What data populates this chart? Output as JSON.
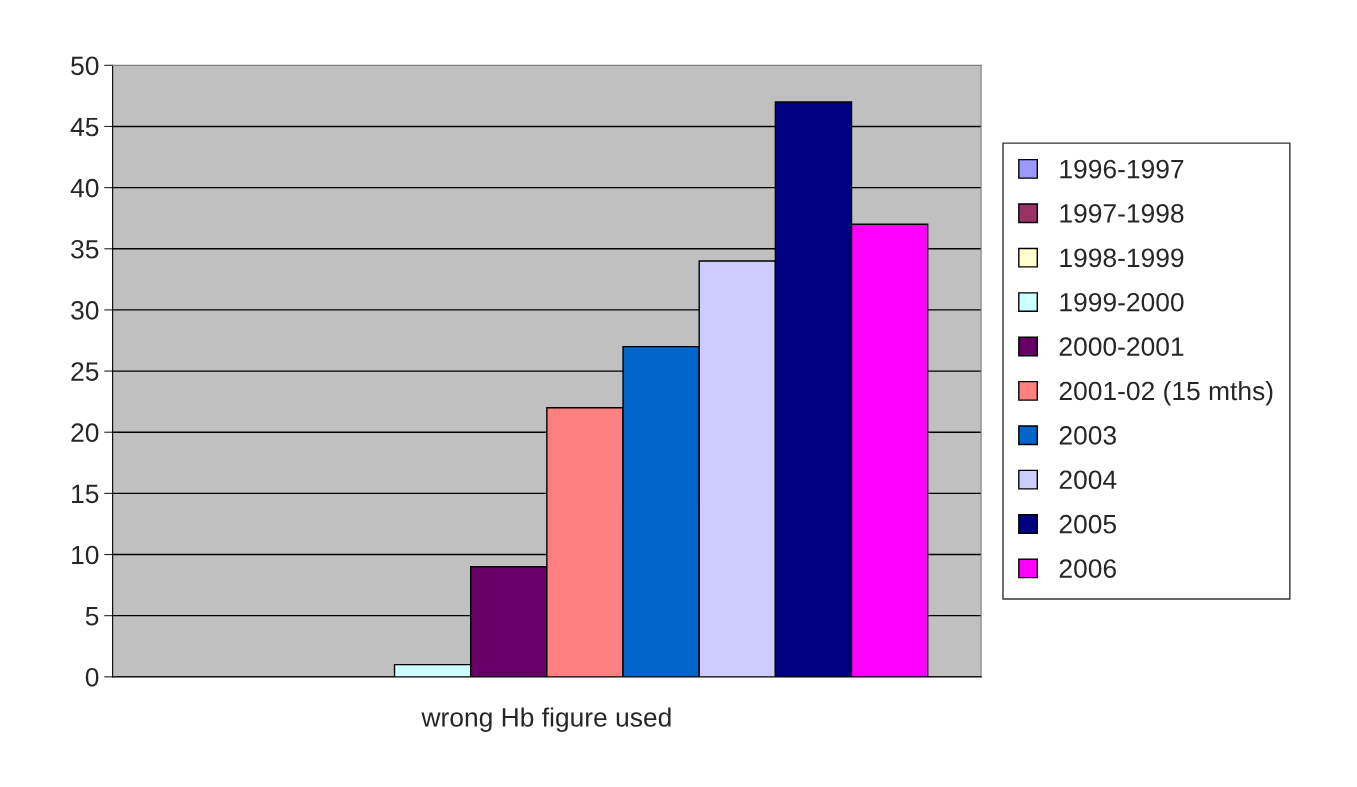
{
  "chart_data": {
    "type": "bar",
    "categories": [
      "wrong Hb figure used"
    ],
    "series": [
      {
        "name": "1996-1997",
        "color": "#9999ff",
        "values": [
          0
        ]
      },
      {
        "name": "1997-1998",
        "color": "#993366",
        "values": [
          0
        ]
      },
      {
        "name": "1998-1999",
        "color": "#ffffcc",
        "values": [
          0
        ]
      },
      {
        "name": "1999-2000",
        "color": "#ccffff",
        "values": [
          1
        ]
      },
      {
        "name": "2000-2001",
        "color": "#660066",
        "values": [
          9
        ]
      },
      {
        "name": "2001-02 (15 mths)",
        "color": "#ff8080",
        "values": [
          22
        ]
      },
      {
        "name": "2003",
        "color": "#0066cc",
        "values": [
          27
        ]
      },
      {
        "name": "2004",
        "color": "#ccccff",
        "values": [
          34
        ]
      },
      {
        "name": "2005",
        "color": "#000080",
        "values": [
          47
        ]
      },
      {
        "name": "2006",
        "color": "#ff00ff",
        "values": [
          37
        ]
      }
    ],
    "ylim": [
      0,
      50
    ],
    "yticks": [
      0,
      5,
      10,
      15,
      20,
      25,
      30,
      35,
      40,
      45,
      50
    ],
    "grid": "y",
    "legend": "right"
  }
}
